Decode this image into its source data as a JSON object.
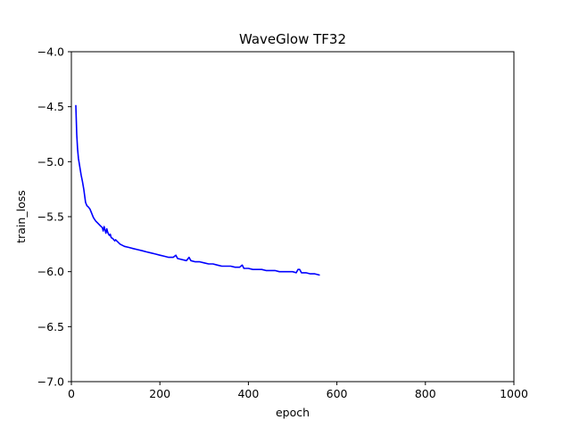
{
  "chart_data": {
    "type": "line",
    "title": "WaveGlow TF32",
    "xlabel": "epoch",
    "ylabel": "train_loss",
    "xlim": [
      0,
      1000
    ],
    "ylim": [
      -7.0,
      -4.0
    ],
    "xticks": [
      0,
      200,
      400,
      600,
      800,
      1000
    ],
    "xtick_labels": [
      "0",
      "200",
      "400",
      "600",
      "800",
      "1000"
    ],
    "yticks": [
      -4.0,
      -4.5,
      -5.0,
      -5.5,
      -6.0,
      -6.5,
      -7.0
    ],
    "ytick_labels": [
      "−4.0",
      "−4.5",
      "−5.0",
      "−5.5",
      "−6.0",
      "−6.5",
      "−7.0"
    ],
    "grid": false,
    "line_color": "#0000ff",
    "series": [
      {
        "x": [
          10,
          12,
          14,
          16,
          18,
          20,
          22,
          25,
          28,
          30,
          32,
          35,
          38,
          42,
          45,
          48,
          50,
          55,
          60,
          65,
          70,
          72,
          74,
          76,
          78,
          80,
          82,
          84,
          86,
          88,
          90,
          94,
          98,
          100,
          110,
          120,
          130,
          140,
          150,
          160,
          170,
          180,
          190,
          200,
          210,
          220,
          230,
          236,
          240,
          250,
          260,
          266,
          270,
          280,
          290,
          300,
          310,
          320,
          330,
          340,
          350,
          360,
          370,
          380,
          386,
          390,
          400,
          410,
          420,
          430,
          440,
          450,
          460,
          470,
          480,
          490,
          500,
          508,
          512,
          516,
          520,
          530,
          540,
          550,
          560
        ],
        "y": [
          -4.49,
          -4.75,
          -4.88,
          -4.97,
          -5.02,
          -5.07,
          -5.12,
          -5.18,
          -5.25,
          -5.31,
          -5.37,
          -5.4,
          -5.41,
          -5.43,
          -5.46,
          -5.49,
          -5.51,
          -5.54,
          -5.56,
          -5.58,
          -5.6,
          -5.63,
          -5.59,
          -5.62,
          -5.65,
          -5.61,
          -5.64,
          -5.66,
          -5.67,
          -5.66,
          -5.69,
          -5.7,
          -5.72,
          -5.71,
          -5.75,
          -5.77,
          -5.78,
          -5.79,
          -5.8,
          -5.81,
          -5.82,
          -5.83,
          -5.84,
          -5.85,
          -5.86,
          -5.87,
          -5.87,
          -5.85,
          -5.88,
          -5.89,
          -5.9,
          -5.87,
          -5.9,
          -5.91,
          -5.91,
          -5.92,
          -5.93,
          -5.93,
          -5.94,
          -5.95,
          -5.95,
          -5.95,
          -5.96,
          -5.96,
          -5.94,
          -5.97,
          -5.97,
          -5.98,
          -5.98,
          -5.98,
          -5.99,
          -5.99,
          -5.99,
          -6.0,
          -6.0,
          -6.0,
          -6.0,
          -6.01,
          -5.98,
          -5.98,
          -6.01,
          -6.01,
          -6.02,
          -6.02,
          -6.03
        ]
      }
    ]
  }
}
